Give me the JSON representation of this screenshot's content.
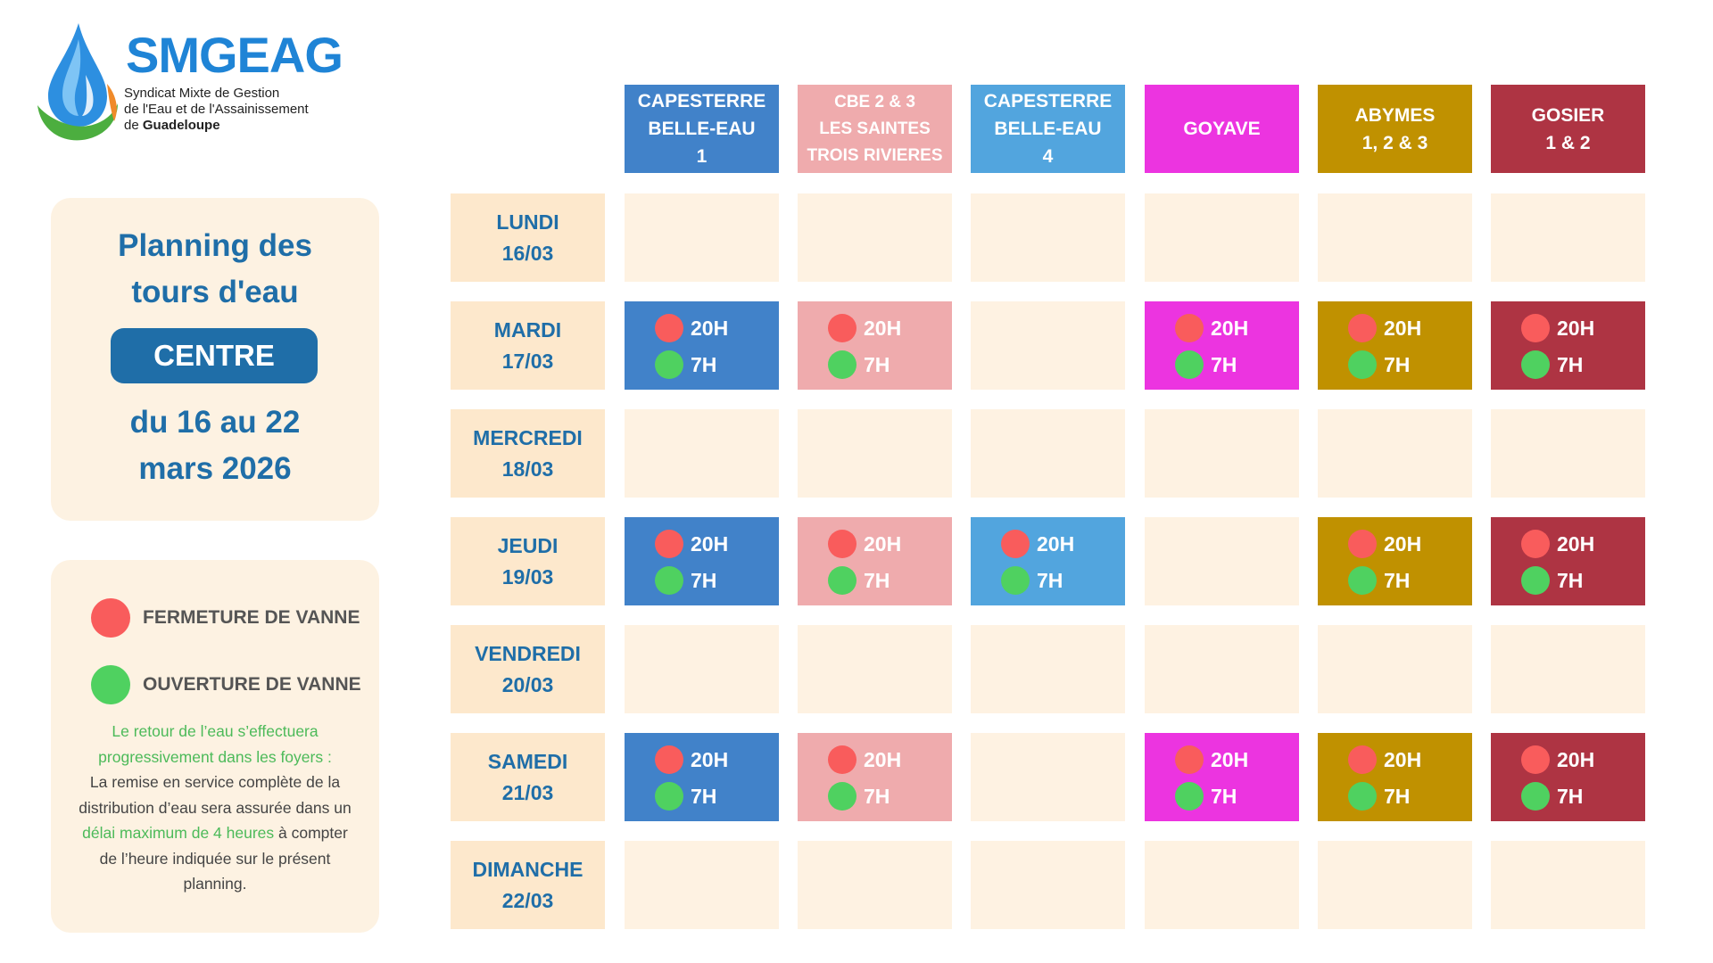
{
  "brand": {
    "name": "SMGEAG",
    "tagline_1": "Syndicat Mixte de Gestion",
    "tagline_2": "de l'Eau et de l'Assainissement",
    "tagline_3_prefix": "de ",
    "tagline_3_bold": "Guadeloupe"
  },
  "title_panel": {
    "title_line1": "Planning des",
    "title_line2": "tours d'eau",
    "region": "CENTRE",
    "dates_line1": "du 16 au 22",
    "dates_line2": "mars 2026"
  },
  "legend": {
    "close_label": "FERMETURE DE VANNE",
    "open_label": "OUVERTURE DE VANNE",
    "close_color": "#f95c5c",
    "open_color": "#4fd160",
    "note_green_1": "Le retour de l’eau s’effectuera",
    "note_green_2": "progressivement dans les foyers :",
    "note_1": "La remise en service complète de la",
    "note_2": "distribution d’eau sera assurée dans un",
    "note_green_3": "délai maximum de 4 heures",
    "note_3": " à compter",
    "note_4": "de l’heure indiquée sur le présent",
    "note_5": "planning."
  },
  "columns": [
    {
      "lines": [
        "CAPESTERRE",
        "BELLE-EAU",
        "1"
      ],
      "color": "#4182c9"
    },
    {
      "lines": [
        "CBE 2 & 3",
        "LES SAINTES",
        "TROIS RIVIERES"
      ],
      "color": "#efabad"
    },
    {
      "lines": [
        "CAPESTERRE",
        "BELLE-EAU",
        "4"
      ],
      "color": "#52a5de"
    },
    {
      "lines": [
        "GOYAVE"
      ],
      "color": "#ec34e0"
    },
    {
      "lines": [
        "ABYMES",
        "1, 2 & 3"
      ],
      "color": "#c09100"
    },
    {
      "lines": [
        "GOSIER",
        "1 & 2"
      ],
      "color": "#ae3443"
    }
  ],
  "days": [
    {
      "name": "LUNDI",
      "date": "16/03",
      "active": [
        false,
        false,
        false,
        false,
        false,
        false
      ]
    },
    {
      "name": "MARDI",
      "date": "17/03",
      "active": [
        true,
        true,
        false,
        true,
        true,
        true
      ]
    },
    {
      "name": "MERCREDI",
      "date": "18/03",
      "active": [
        false,
        false,
        false,
        false,
        false,
        false
      ]
    },
    {
      "name": "JEUDI",
      "date": "19/03",
      "active": [
        true,
        true,
        true,
        false,
        true,
        true
      ]
    },
    {
      "name": "VENDREDI",
      "date": "20/03",
      "active": [
        false,
        false,
        false,
        false,
        false,
        false
      ]
    },
    {
      "name": "SAMEDI",
      "date": "21/03",
      "active": [
        true,
        true,
        false,
        true,
        true,
        true
      ]
    },
    {
      "name": "DIMANCHE",
      "date": "22/03",
      "active": [
        false,
        false,
        false,
        false,
        false,
        false
      ]
    }
  ],
  "close_time": "20H",
  "open_time": "7H"
}
